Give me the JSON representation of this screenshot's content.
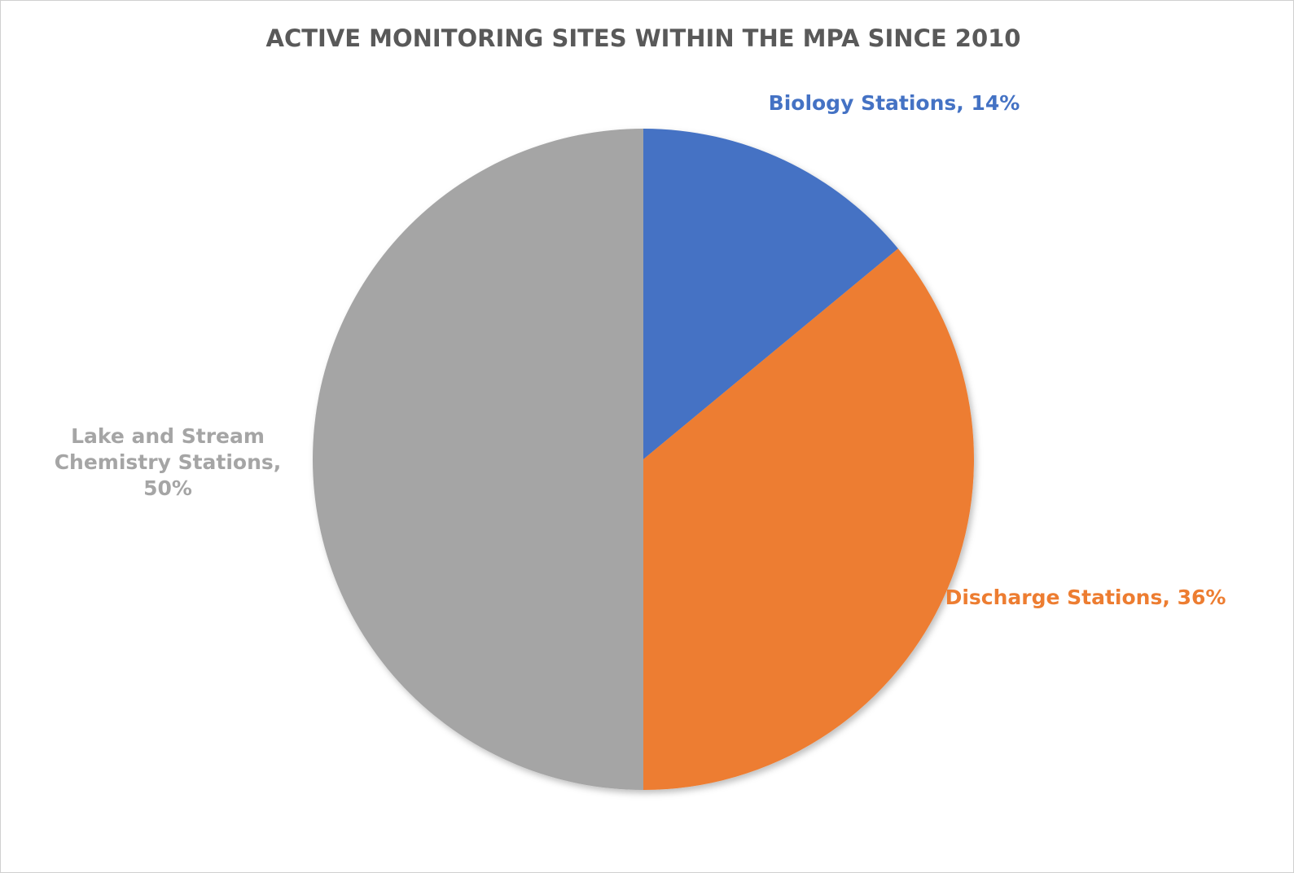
{
  "chart_data": {
    "type": "pie",
    "title": "ACTIVE MONITORING SITES WITHIN THE MPA SINCE 2010",
    "categories": [
      "Biology Stations",
      "Discharge Stations",
      "Lake and Stream Chemistry Stations"
    ],
    "values": [
      14,
      36,
      50
    ],
    "value_labels": [
      "14%",
      "36%",
      "50%"
    ],
    "colors": [
      "#4472c4",
      "#ed7d31",
      "#a5a5a5"
    ]
  }
}
